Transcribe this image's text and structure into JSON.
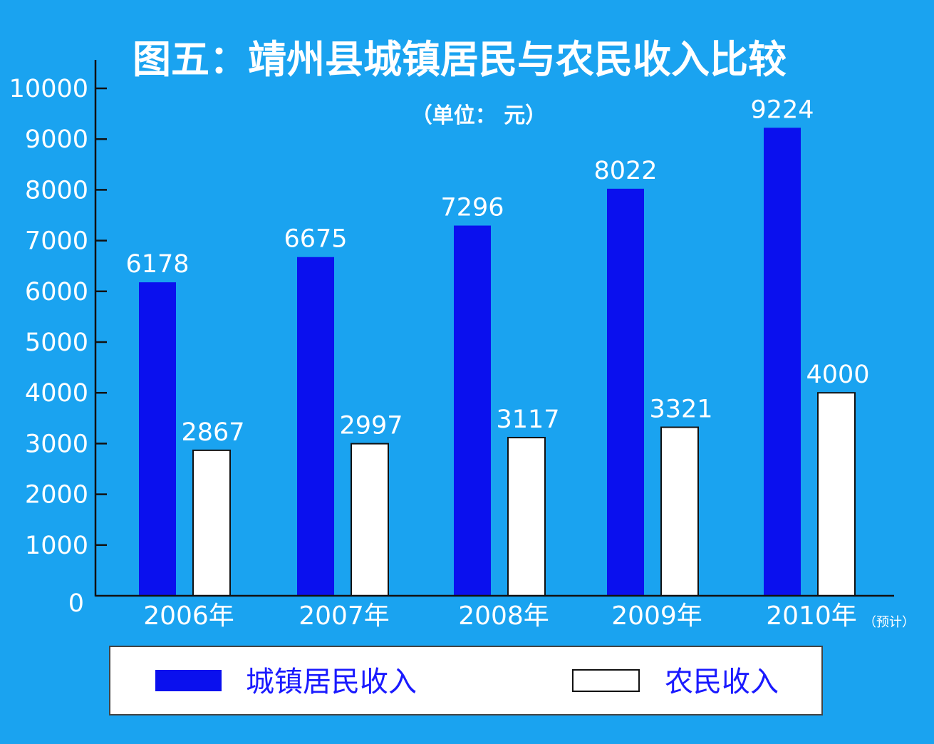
{
  "colors": {
    "background": "#1aa3f0",
    "urban_bar": "#0a10ee",
    "rural_bar": "#ffffff",
    "axis": "#111111",
    "legend_text": "#1a1aff"
  },
  "chart_data": {
    "type": "bar",
    "title": "图五：靖州县城镇居民与农民收入比较",
    "subtitle": "（单位： 元）",
    "categories": [
      "2006年",
      "2007年",
      "2008年",
      "2009年",
      "2010年"
    ],
    "category_note": "（预计）",
    "series": [
      {
        "name": "城镇居民收入",
        "values": [
          6178,
          6675,
          7296,
          8022,
          9224
        ]
      },
      {
        "name": "农民收入",
        "values": [
          2867,
          2997,
          3117,
          3321,
          4000
        ]
      }
    ],
    "data_labels": [
      [
        "6178",
        "6675",
        "7296",
        "8022",
        "9224"
      ],
      [
        "2867",
        "2997",
        "3117",
        "3321",
        "4000"
      ]
    ],
    "yticks": [
      "0",
      "1000",
      "2000",
      "3000",
      "4000",
      "5000",
      "6000",
      "7000",
      "8000",
      "9000",
      "10000"
    ],
    "ylim": [
      0,
      10000
    ],
    "grid": false,
    "legend_position": "bottom",
    "xlabel": "",
    "ylabel": ""
  }
}
